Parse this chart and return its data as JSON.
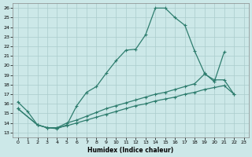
{
  "xlabel": "Humidex (Indice chaleur)",
  "bg_color": "#cce8e8",
  "grid_color": "#aacccc",
  "line_color": "#2e7d6e",
  "xlim": [
    -0.5,
    23.5
  ],
  "ylim": [
    12.5,
    26.5
  ],
  "xticks": [
    0,
    1,
    2,
    3,
    4,
    5,
    6,
    7,
    8,
    9,
    10,
    11,
    12,
    13,
    14,
    15,
    16,
    17,
    18,
    19,
    20,
    21,
    22,
    23
  ],
  "yticks": [
    13,
    14,
    15,
    16,
    17,
    18,
    19,
    20,
    21,
    22,
    23,
    24,
    25,
    26
  ],
  "s1x": [
    0,
    1,
    2,
    3,
    4,
    5,
    6,
    7,
    8,
    9,
    10,
    11,
    12,
    13,
    14,
    15,
    16,
    17,
    18,
    19,
    20,
    21
  ],
  "s1y": [
    16.2,
    15.2,
    13.8,
    13.5,
    13.4,
    13.8,
    15.8,
    17.2,
    17.8,
    19.2,
    20.5,
    21.6,
    21.7,
    23.2,
    26.0,
    26.0,
    25.0,
    24.2,
    21.5,
    19.2,
    18.3,
    21.4
  ],
  "s2x": [
    0,
    2,
    3,
    4,
    5,
    6,
    7,
    8,
    9,
    10,
    11,
    12,
    13,
    14,
    15,
    16,
    17,
    18,
    19,
    20,
    21,
    22
  ],
  "s2y": [
    15.5,
    13.8,
    13.5,
    13.5,
    14.0,
    14.3,
    14.7,
    15.1,
    15.5,
    15.8,
    16.1,
    16.4,
    16.7,
    17.0,
    17.2,
    17.5,
    17.8,
    18.1,
    19.1,
    18.5,
    18.5,
    17.0
  ],
  "s3x": [
    0,
    2,
    3,
    4,
    5,
    6,
    7,
    8,
    9,
    10,
    11,
    12,
    13,
    14,
    15,
    16,
    17,
    18,
    19,
    20,
    21,
    22
  ],
  "s3y": [
    15.5,
    13.8,
    13.5,
    13.5,
    13.7,
    14.0,
    14.3,
    14.6,
    14.9,
    15.2,
    15.5,
    15.8,
    16.0,
    16.3,
    16.5,
    16.7,
    17.0,
    17.2,
    17.5,
    17.7,
    17.9,
    17.0
  ]
}
